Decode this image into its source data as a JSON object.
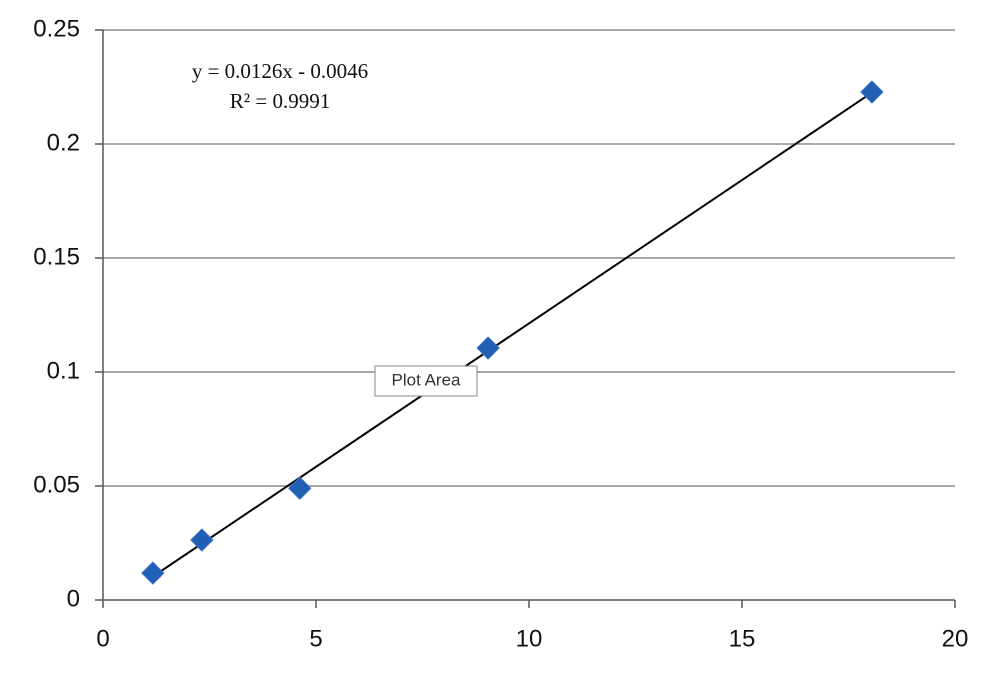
{
  "chart_data": {
    "type": "scatter",
    "x": [
      1.17,
      2.32,
      4.62,
      9.04,
      18.05
    ],
    "values": [
      0.0118,
      0.0263,
      0.049,
      0.1105,
      0.2228
    ],
    "color": "#1f5fb4",
    "trendline": true,
    "trendline_color": "#000000",
    "trendline_equation": "y = 0.0126x - 0.0046",
    "trendline_r2": "R² = 0.9991",
    "tooltip": "Plot Area",
    "xlim": [
      0,
      20
    ],
    "xticks": [
      0,
      5,
      10,
      15,
      20
    ],
    "ylim": [
      0,
      0.25
    ],
    "yticks": [
      0,
      0.05,
      0.1,
      0.15,
      0.2,
      0.25
    ],
    "grid": true
  }
}
